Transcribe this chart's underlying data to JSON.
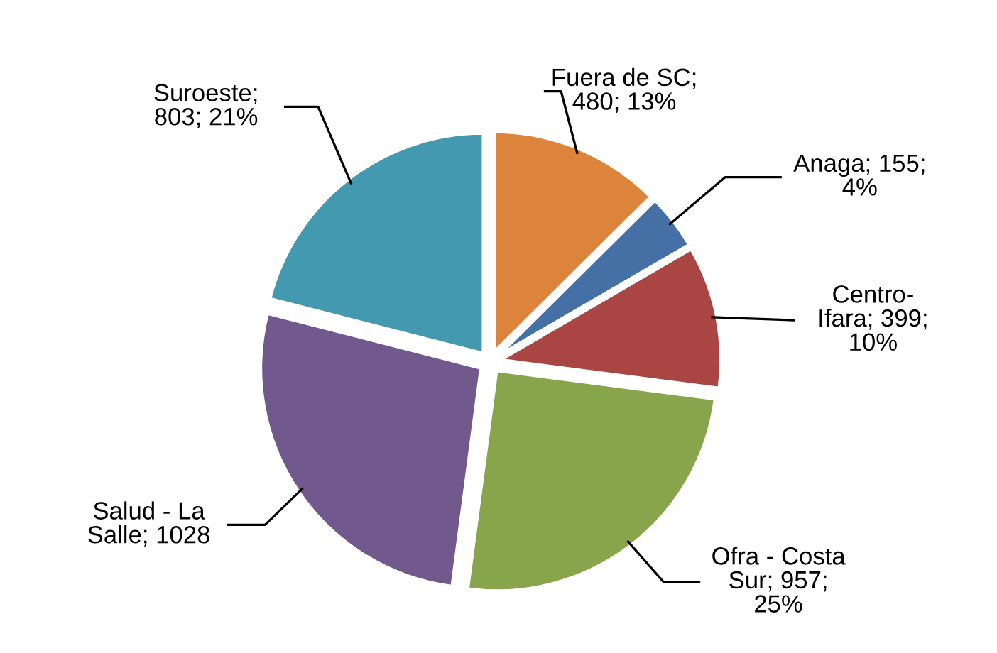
{
  "chart_data": {
    "type": "pie",
    "categories": [
      "Fuera de SC",
      "Anaga",
      "Centro-Ifara",
      "Ofra - Costa Sur",
      "Salud - La Salle",
      "Suroeste"
    ],
    "values": [
      480,
      155,
      399,
      957,
      1028,
      803
    ],
    "colors": [
      "#dd843c",
      "#4470a5",
      "#a94543",
      "#88a54b",
      "#71598e",
      "#4299b0"
    ],
    "value_labels": [
      "; 480; 13%",
      "; 155; 4%",
      "; 399; 10%",
      "; 957; 25%",
      "; 1028",
      "; 803; 21%"
    ]
  }
}
